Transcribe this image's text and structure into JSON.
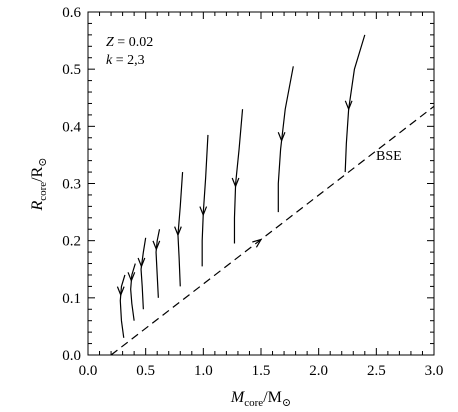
{
  "chart_data": {
    "type": "line",
    "xlim": [
      0.0,
      3.0
    ],
    "ylim": [
      0.0,
      0.6
    ],
    "x_ticks": [
      "0.0",
      "0.5",
      "1.0",
      "1.5",
      "2.0",
      "2.5",
      "3.0"
    ],
    "y_ticks": [
      "0.0",
      "0.1",
      "0.2",
      "0.3",
      "0.4",
      "0.5",
      "0.6"
    ],
    "x_ticks_values": [
      0.0,
      0.5,
      1.0,
      1.5,
      2.0,
      2.5,
      3.0
    ],
    "y_ticks_values": [
      0.0,
      0.1,
      0.2,
      0.3,
      0.4,
      0.5,
      0.6
    ],
    "xlabel": {
      "var": "M",
      "sub": "core",
      "unit": "/M",
      "unit_sub": "⊙"
    },
    "ylabel": {
      "var": "R",
      "sub": "core",
      "unit": "/R",
      "unit_sub": "⊙"
    },
    "annotations": {
      "z_var": "Z",
      "z_value": " = 0.02",
      "k_var": "k",
      "k_value": " = 2,3",
      "bse_label": "BSE"
    },
    "grid": false,
    "tracks": [
      {
        "x": [
          0.31,
          0.29,
          0.28,
          0.29,
          0.32
        ],
        "y": [
          0.03,
          0.06,
          0.095,
          0.12,
          0.14
        ]
      },
      {
        "x": [
          0.4,
          0.38,
          0.37,
          0.38,
          0.41
        ],
        "y": [
          0.06,
          0.09,
          0.115,
          0.14,
          0.16
        ]
      },
      {
        "x": [
          0.48,
          0.47,
          0.46,
          0.48,
          0.5
        ],
        "y": [
          0.08,
          0.12,
          0.15,
          0.18,
          0.205
        ]
      },
      {
        "x": [
          0.61,
          0.6,
          0.59,
          0.6,
          0.62
        ],
        "y": [
          0.1,
          0.14,
          0.18,
          0.2,
          0.22
        ]
      },
      {
        "x": [
          0.8,
          0.79,
          0.78,
          0.8,
          0.82
        ],
        "y": [
          0.12,
          0.17,
          0.21,
          0.26,
          0.32
        ]
      },
      {
        "x": [
          0.99,
          0.99,
          1.0,
          1.02,
          1.04
        ],
        "y": [
          0.155,
          0.2,
          0.25,
          0.31,
          0.385
        ]
      },
      {
        "x": [
          1.27,
          1.27,
          1.28,
          1.31,
          1.34
        ],
        "y": [
          0.195,
          0.24,
          0.3,
          0.36,
          0.43
        ]
      },
      {
        "x": [
          1.65,
          1.65,
          1.67,
          1.71,
          1.78
        ],
        "y": [
          0.25,
          0.3,
          0.36,
          0.43,
          0.505
        ]
      },
      {
        "x": [
          2.23,
          2.24,
          2.26,
          2.31,
          2.4
        ],
        "y": [
          0.32,
          0.37,
          0.43,
          0.5,
          0.56
        ]
      }
    ],
    "track_arrow_y": [
      0.105,
      0.13,
      0.155,
      0.185,
      0.21,
      0.245,
      0.295,
      0.375,
      0.43
    ],
    "bse_relation": {
      "x": [
        0.2,
        3.0
      ],
      "y": [
        0.0,
        0.435
      ]
    },
    "bse_arrow_x": 1.5
  }
}
